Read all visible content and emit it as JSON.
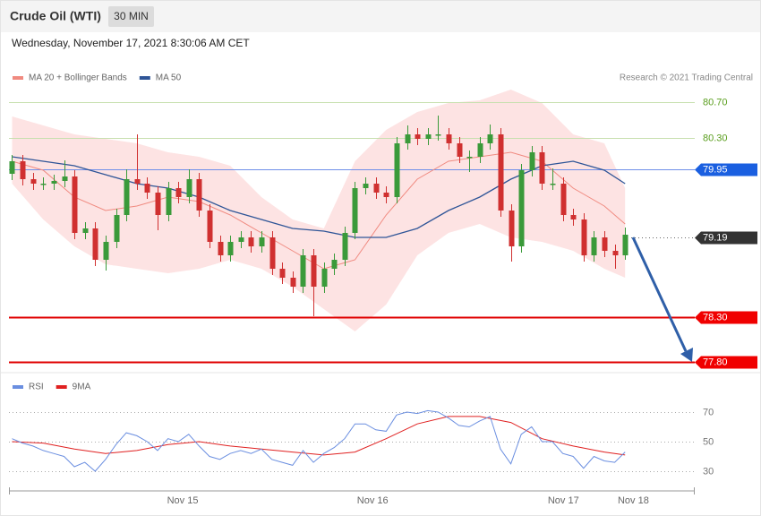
{
  "header": {
    "title": "Crude Oil (WTI)",
    "timeframe": "30 MIN",
    "timestamp": "Wednesday, November 17, 2021 8:30:06 AM CET"
  },
  "chart_data": [
    {
      "type": "candlestick",
      "source": "Research © 2021 Trading Central",
      "up_color": "#3a9a3a",
      "down_color": "#d03030",
      "open": [
        79.9,
        80.04,
        79.84,
        79.79,
        79.79,
        79.82,
        79.87,
        79.24,
        79.29,
        78.94,
        79.14,
        79.44,
        79.84,
        79.79,
        79.69,
        79.44,
        79.74,
        79.64,
        79.84,
        79.49,
        79.14,
        78.99,
        79.14,
        79.19,
        79.09,
        79.19,
        78.84,
        78.74,
        78.64,
        78.99,
        78.64,
        78.84,
        78.94,
        79.24,
        79.74,
        79.79,
        79.69,
        79.64,
        80.24,
        80.34,
        80.29,
        80.34,
        80.34,
        80.24,
        80.09,
        80.09,
        80.24,
        80.34,
        79.49,
        79.09,
        79.94,
        80.14,
        79.79,
        79.79,
        79.44,
        79.39,
        78.99,
        79.19,
        79.04,
        78.99
      ],
      "high": [
        80.11,
        80.11,
        79.91,
        79.86,
        79.89,
        80.05,
        79.94,
        79.36,
        79.36,
        79.21,
        79.51,
        79.95,
        80.34,
        79.86,
        79.76,
        79.81,
        79.81,
        79.95,
        79.91,
        79.56,
        79.21,
        79.21,
        79.26,
        79.26,
        79.26,
        79.26,
        78.91,
        78.81,
        79.06,
        79.06,
        78.91,
        79.01,
        79.31,
        79.81,
        79.86,
        79.86,
        79.76,
        80.31,
        80.44,
        80.41,
        80.41,
        80.55,
        80.41,
        80.31,
        80.16,
        80.31,
        80.45,
        80.41,
        79.56,
        80.01,
        80.21,
        80.21,
        79.96,
        79.86,
        79.51,
        79.46,
        79.26,
        79.26,
        79.11,
        79.3
      ],
      "low": [
        79.83,
        79.77,
        79.72,
        79.72,
        79.72,
        79.75,
        79.17,
        79.17,
        78.87,
        78.82,
        79.07,
        79.37,
        79.72,
        79.62,
        79.27,
        79.37,
        79.57,
        79.57,
        79.42,
        79.07,
        78.92,
        78.92,
        79.07,
        79.02,
        79.02,
        78.77,
        78.67,
        78.57,
        78.57,
        78.31,
        78.57,
        78.77,
        78.87,
        79.17,
        79.67,
        79.62,
        79.57,
        79.57,
        80.17,
        80.22,
        80.22,
        80.27,
        80.17,
        80.02,
        79.92,
        80.02,
        80.17,
        79.42,
        78.92,
        79.02,
        79.87,
        79.72,
        79.72,
        79.37,
        79.32,
        78.92,
        78.92,
        78.97,
        78.84,
        78.94
      ],
      "close": [
        80.04,
        79.84,
        79.79,
        79.79,
        79.82,
        79.87,
        79.24,
        79.29,
        78.94,
        79.14,
        79.44,
        79.84,
        79.79,
        79.69,
        79.44,
        79.74,
        79.64,
        79.84,
        79.49,
        79.14,
        78.99,
        79.14,
        79.19,
        79.09,
        79.19,
        78.84,
        78.74,
        78.64,
        78.99,
        78.64,
        78.84,
        78.94,
        79.24,
        79.74,
        79.79,
        79.69,
        79.64,
        80.24,
        80.34,
        80.29,
        80.34,
        80.34,
        80.24,
        80.09,
        80.09,
        80.24,
        80.34,
        79.49,
        79.09,
        79.94,
        80.14,
        79.79,
        79.79,
        79.44,
        79.39,
        78.99,
        79.19,
        79.04,
        78.99,
        79.22
      ],
      "bands": {
        "color": "#fde3e3",
        "x": [
          0,
          3,
          6,
          9,
          12,
          15,
          18,
          21,
          24,
          27,
          30,
          33,
          36,
          39,
          42,
          45,
          48,
          51,
          54,
          57,
          59
        ],
        "upper": [
          80.54,
          80.44,
          80.34,
          80.29,
          80.24,
          80.14,
          80.09,
          79.99,
          79.64,
          79.39,
          79.29,
          80.04,
          80.39,
          80.59,
          80.69,
          80.72,
          80.84,
          80.69,
          80.34,
          80.24,
          79.74
        ],
        "lower": [
          79.79,
          79.39,
          79.09,
          78.89,
          78.84,
          78.79,
          78.84,
          78.94,
          78.84,
          78.64,
          78.39,
          78.14,
          78.44,
          78.99,
          79.24,
          79.34,
          79.19,
          79.14,
          79.04,
          78.84,
          78.74
        ]
      },
      "series": [
        {
          "name": "MA 20 + Bollinger Bands",
          "color": "#f08a80",
          "x": [
            0,
            3,
            6,
            9,
            12,
            15,
            18,
            21,
            24,
            27,
            30,
            33,
            36,
            39,
            42,
            45,
            48,
            51,
            54,
            57,
            59
          ],
          "values": [
            80.04,
            79.94,
            79.64,
            79.49,
            79.54,
            79.64,
            79.59,
            79.44,
            79.24,
            79.04,
            78.84,
            78.94,
            79.44,
            79.84,
            80.04,
            80.09,
            80.14,
            80.04,
            79.74,
            79.54,
            79.34
          ]
        },
        {
          "name": "MA 50",
          "color": "#2f5597",
          "x": [
            0,
            3,
            6,
            9,
            12,
            15,
            18,
            21,
            24,
            27,
            30,
            33,
            36,
            39,
            42,
            45,
            48,
            51,
            54,
            57,
            59
          ],
          "values": [
            80.09,
            80.04,
            79.99,
            79.89,
            79.79,
            79.74,
            79.64,
            79.49,
            79.39,
            79.29,
            79.26,
            79.19,
            79.19,
            79.29,
            79.49,
            79.64,
            79.84,
            79.99,
            80.04,
            79.94,
            79.79
          ]
        }
      ],
      "levels": [
        {
          "value": 80.7,
          "label": "80.70",
          "color": "#c8e0b0",
          "text_color": "#5a9e1e"
        },
        {
          "value": 80.3,
          "label": "80.30",
          "color": "#c8e0b0",
          "text_color": "#5a9e1e"
        },
        {
          "value": 79.95,
          "color": "#6f8fe8",
          "tag_color": "#1a5fe0"
        },
        {
          "value": 79.19,
          "color": "#666666",
          "tag_color": "#333333",
          "dotted": true
        },
        {
          "value": 78.3,
          "label": "78.30",
          "color": "#e00000",
          "tag_color": "#f00000"
        },
        {
          "value": 77.8,
          "label": "77.80",
          "color": "#e00000",
          "tag_color": "#f00000"
        }
      ],
      "xlim": [
        -0.3,
        65.7
      ],
      "ylim": [
        77.7,
        80.9
      ]
    },
    {
      "type": "line",
      "series": [
        {
          "name": "RSI",
          "color": "#6a8ee0",
          "values": [
            52,
            49,
            47,
            44,
            42,
            40,
            33,
            36,
            30,
            38,
            48,
            56,
            54,
            50,
            44,
            52,
            50,
            55,
            47,
            40,
            38,
            42,
            44,
            42,
            45,
            38,
            36,
            34,
            44,
            36,
            42,
            46,
            52,
            62,
            62,
            58,
            57,
            68,
            70,
            69,
            71,
            70,
            66,
            61,
            60,
            64,
            67,
            45,
            35,
            55,
            60,
            50,
            50,
            42,
            40,
            32,
            40,
            37,
            36,
            43
          ]
        },
        {
          "name": "9MA",
          "color": "#e02020",
          "x": [
            0,
            3,
            6,
            9,
            12,
            15,
            18,
            21,
            24,
            27,
            30,
            33,
            36,
            39,
            42,
            45,
            48,
            51,
            54,
            57,
            59
          ],
          "values": [
            50,
            49,
            45,
            42,
            44,
            48,
            50,
            47,
            45,
            43,
            41,
            43,
            52,
            62,
            67,
            67,
            63,
            52,
            47,
            43,
            41
          ]
        }
      ],
      "xlim": [
        -0.3,
        65.7
      ],
      "ylim": [
        20,
        80
      ],
      "yticks": [
        30,
        50,
        70
      ],
      "xticks": [
        {
          "value": 16.42,
          "label": "Nov 15"
        },
        {
          "value": 34.7,
          "label": "Nov 16"
        },
        {
          "value": 53.06,
          "label": "Nov 17"
        },
        {
          "value": 59.79,
          "label": "Nov 18"
        }
      ]
    }
  ]
}
